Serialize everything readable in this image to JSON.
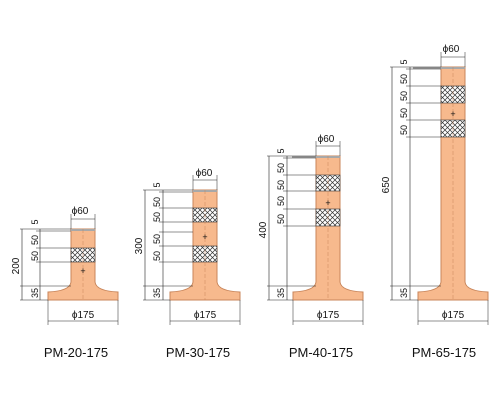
{
  "colors": {
    "body": "#f7b98d",
    "body_stroke": "#c8855a",
    "cap": "#a8a8a8",
    "reflector_fill": "#ffffff",
    "reflector_hatch": "#333333",
    "dimension_line": "#222222"
  },
  "posts": [
    {
      "model": "PM-20-175",
      "height_label": "200",
      "top_diameter_label": "ϕ60",
      "base_diameter_label": "ϕ175",
      "segment_labels": [
        "5",
        "50",
        "50",
        "35"
      ]
    },
    {
      "model": "PM-30-175",
      "height_label": "300",
      "top_diameter_label": "ϕ60",
      "base_diameter_label": "ϕ175",
      "segment_labels": [
        "5",
        "50",
        "50",
        "50",
        "50",
        "35"
      ]
    },
    {
      "model": "PM-40-175",
      "height_label": "400",
      "top_diameter_label": "ϕ60",
      "base_diameter_label": "ϕ175",
      "segment_labels": [
        "5",
        "50",
        "50",
        "50",
        "50",
        "35"
      ]
    },
    {
      "model": "PM-65-175",
      "height_label": "650",
      "top_diameter_label": "ϕ60",
      "base_diameter_label": "ϕ175",
      "segment_labels": [
        "5",
        "50",
        "50",
        "50",
        "50",
        "35"
      ]
    }
  ]
}
